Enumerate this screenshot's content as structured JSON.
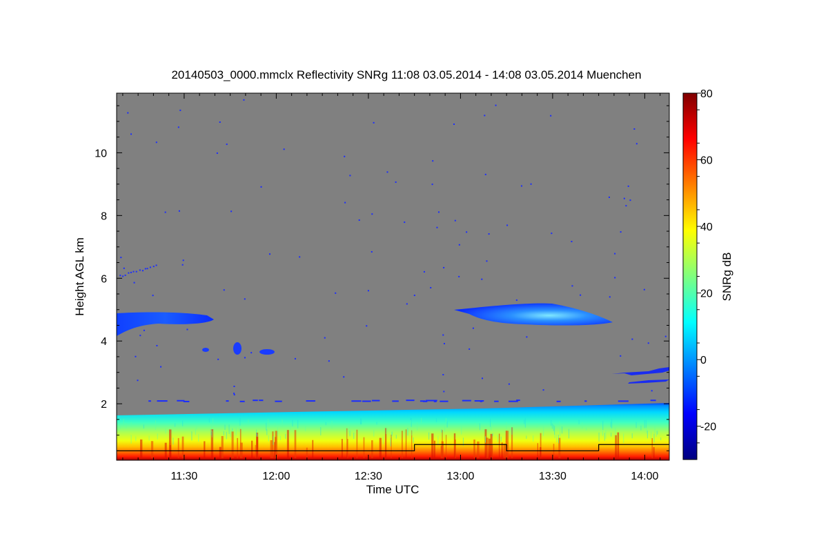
{
  "chart_data": {
    "type": "heatmap",
    "title": "20140503_0000.mmclx Reflectivity SNRg   11:08 03.05.2014 - 14:08 03.05.2014 Muenchen",
    "xlabel": "Time UTC",
    "ylabel": "Height AGL km",
    "colorbar_label": "SNRg dB",
    "x_range": [
      "11:08",
      "14:08"
    ],
    "y_range": [
      0.2,
      11.9
    ],
    "x_ticks": [
      {
        "label": "11:30",
        "minutes": 690
      },
      {
        "label": "12:00",
        "minutes": 720
      },
      {
        "label": "12:30",
        "minutes": 750
      },
      {
        "label": "13:00",
        "minutes": 780
      },
      {
        "label": "13:30",
        "minutes": 810
      },
      {
        "label": "14:00",
        "minutes": 840
      }
    ],
    "y_ticks": [
      2,
      4,
      6,
      8,
      10
    ],
    "colorbar_range": [
      -30,
      80
    ],
    "colorbar_ticks": [
      80,
      60,
      40,
      20,
      0,
      -20
    ],
    "colors": {
      "background": "#808080",
      "colormap": [
        "#00007f",
        "#0000ff",
        "#007fff",
        "#00ffff",
        "#7fff7f",
        "#ffff00",
        "#ff7f00",
        "#ff0000",
        "#7f0000"
      ]
    },
    "boundary_layer_echo": {
      "top_km_start": 1.6,
      "top_km_end": 2.0,
      "snr_near_surface_db": 70,
      "snr_at_top_db": 5
    },
    "cloud_layers": [
      {
        "name": "mid-level cloud early",
        "start": "11:08",
        "end": "11:40",
        "base_km": 4.3,
        "top_km": 4.85,
        "peak_snr_db": -10
      },
      {
        "name": "mid-level cloud late",
        "start": "12:58",
        "end": "13:48",
        "base_km": 4.55,
        "top_km": 5.2,
        "peak_snr_db": 8
      },
      {
        "name": "low patch 1",
        "start": "11:46",
        "end": "11:50",
        "base_km": 3.6,
        "top_km": 4.0,
        "peak_snr_db": -10
      },
      {
        "name": "low patch 2",
        "start": "11:55",
        "end": "12:00",
        "base_km": 3.6,
        "top_km": 3.8,
        "peak_snr_db": -12
      }
    ],
    "black_line_steps": [
      {
        "start": "11:08",
        "end": "12:45",
        "height_km": 0.5
      },
      {
        "start": "12:45",
        "end": "13:15",
        "height_km": 0.7
      },
      {
        "start": "13:15",
        "end": "13:45",
        "height_km": 0.5
      },
      {
        "start": "13:45",
        "end": "14:08",
        "height_km": 0.7
      }
    ]
  }
}
